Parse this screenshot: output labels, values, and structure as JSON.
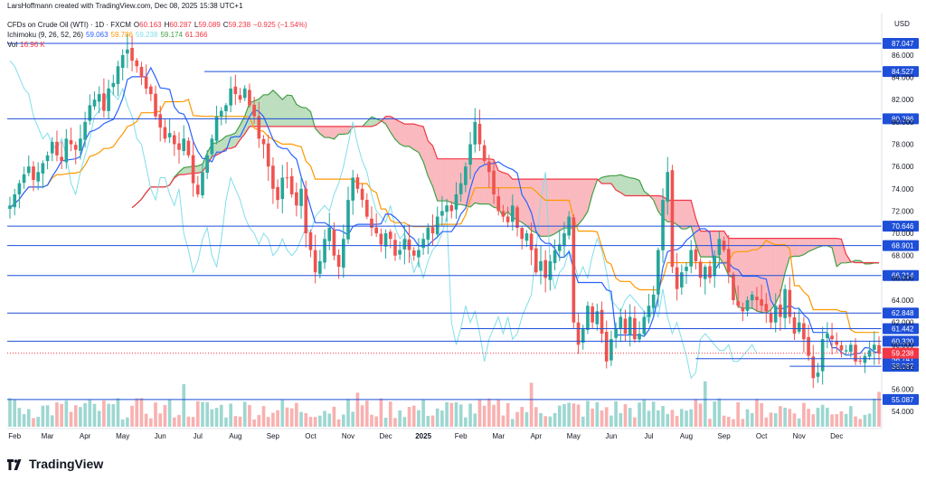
{
  "header": {
    "created_by": "LarsHoffmann created with TradingView.com, Dec 08, 2025 15:38 UTC+1",
    "currency": "USD"
  },
  "legend": {
    "symbol": "CFDs on Crude Oil (WTI) · 1D · FXCM",
    "ohlc": {
      "o_label": "O",
      "o": "60.163",
      "h_label": "H",
      "h": "60.287",
      "l_label": "L",
      "l": "59.089",
      "c_label": "C",
      "c": "59.238",
      "change": "−0.925 (−1.54%)"
    },
    "ichimoku": {
      "name": "Ichimoku (9, 26, 52, 26)",
      "v1": "59.063",
      "v2": "59.786",
      "v3": "59.238",
      "v4": "59.174",
      "v5": "61.366"
    },
    "vol": {
      "name": "Vol",
      "value": "16.96 K"
    }
  },
  "colors": {
    "up": "#26a69a",
    "down": "#ef5350",
    "conversion": "#2962ff",
    "base": "#ff9800",
    "lagging": "#80deea",
    "lead_a": "#43a047",
    "lead_b": "#f23645",
    "kumo_green": "rgba(67,160,71,0.35)",
    "kumo_red": "rgba(242,54,69,0.35)",
    "level": "#1e4fd8",
    "price_tag": "#f23645",
    "dashed": "#1e4fd8"
  },
  "chart_data": {
    "type": "candlestick",
    "title": "CFDs on Crude Oil (WTI) · 1D · FXCM",
    "ylim": [
      53,
      88
    ],
    "y_ticks": [
      "54.000",
      "56.000",
      "58.000",
      "60.000",
      "62.000",
      "64.000",
      "66.000",
      "68.000",
      "70.000",
      "72.000",
      "74.000",
      "76.000",
      "78.000",
      "80.000",
      "82.000",
      "84.000",
      "86.000"
    ],
    "x_ticks": [
      "Feb",
      "Mar",
      "Apr",
      "May",
      "Jun",
      "Jul",
      "Aug",
      "Sep",
      "Oct",
      "Nov",
      "Dec",
      "2025",
      "Feb",
      "Mar",
      "Apr",
      "May",
      "Jun",
      "Jul",
      "Aug",
      "Sep",
      "Oct",
      "Nov",
      "Dec"
    ],
    "horizontal_levels": [
      {
        "value": 87.047,
        "label": "87.047"
      },
      {
        "value": 84.527,
        "label": "84.527"
      },
      {
        "value": 80.286,
        "label": "80.286"
      },
      {
        "value": 70.646,
        "label": "70.646"
      },
      {
        "value": 68.901,
        "label": "68.901"
      },
      {
        "value": 66.214,
        "label": "66.214"
      },
      {
        "value": 62.848,
        "label": "62.848"
      },
      {
        "value": 61.442,
        "label": "61.442"
      },
      {
        "value": 60.32,
        "label": "60.320"
      },
      {
        "value": 58.741,
        "label": "58.741"
      },
      {
        "value": 58.062,
        "label": "58.062"
      },
      {
        "value": 55.087,
        "label": "55.087"
      }
    ],
    "last_price": {
      "value": 59.238,
      "label": "59.238"
    },
    "series_close": [
      {
        "month": "Jan",
        "values": [
          72.5,
          73.5,
          74.5,
          75.3,
          76.0,
          74.8,
          75.5
        ]
      },
      {
        "month": "Feb",
        "values": [
          76.3,
          77.0,
          78.2,
          77.0,
          76.5,
          78.5,
          78.0,
          77.5
        ]
      },
      {
        "month": "Mar",
        "values": [
          78.5,
          80.0,
          81.5,
          82.0,
          82.5,
          81.0,
          83.0,
          83.5
        ]
      },
      {
        "month": "Apr",
        "values": [
          85.0,
          86.0,
          86.5,
          85.5,
          85.0,
          84.0,
          83.0,
          82.5
        ]
      },
      {
        "month": "May",
        "values": [
          80.5,
          79.5,
          78.5,
          79.0,
          78.0,
          77.5,
          78.5,
          77.0
        ]
      },
      {
        "month": "Jun",
        "values": [
          74.5,
          73.5,
          75.5,
          77.0,
          78.5,
          80.5,
          81.0,
          81.5
        ]
      },
      {
        "month": "Jul",
        "values": [
          83.0,
          82.5,
          82.0,
          83.0,
          81.5,
          80.5,
          78.5,
          78.0
        ]
      },
      {
        "month": "Aug",
        "values": [
          76.0,
          74.0,
          73.0,
          75.0,
          75.0,
          73.5,
          72.5,
          74.0
        ]
      },
      {
        "month": "Sep",
        "values": [
          70.0,
          68.5,
          66.5,
          67.5,
          69.5,
          70.5,
          68.0,
          67.0
        ]
      },
      {
        "month": "Oct",
        "values": [
          69.5,
          73.0,
          75.0,
          74.0,
          73.0,
          71.5,
          70.5,
          70.0
        ]
      },
      {
        "month": "Nov",
        "values": [
          69.0,
          70.0,
          69.5,
          68.0,
          68.5,
          69.5,
          68.5,
          68.0
        ]
      },
      {
        "month": "Dec",
        "values": [
          68.5,
          69.5,
          70.5,
          70.0,
          71.5,
          72.0,
          72.5,
          72.0
        ]
      },
      {
        "month": "Jan",
        "values": [
          73.5,
          74.5,
          76.0,
          78.0,
          80.0,
          78.0,
          76.5,
          75.5
        ]
      },
      {
        "month": "Feb",
        "values": [
          73.5,
          72.0,
          71.5,
          71.0,
          72.5,
          70.5,
          69.5,
          70.0
        ]
      },
      {
        "month": "Mar",
        "values": [
          68.5,
          66.5,
          67.5,
          66.0,
          67.5,
          68.5,
          69.0,
          70.0
        ]
      },
      {
        "month": "Apr",
        "values": [
          71.5,
          62.0,
          60.0,
          61.5,
          63.5,
          62.0,
          63.0,
          61.0
        ]
      },
      {
        "month": "May",
        "values": [
          58.5,
          60.5,
          61.5,
          62.5,
          61.0,
          62.5,
          60.5,
          61.0
        ]
      },
      {
        "month": "Jun",
        "values": [
          62.5,
          63.5,
          64.5,
          68.5,
          73.0,
          75.5,
          67.0,
          65.0
        ]
      },
      {
        "month": "Jul",
        "values": [
          66.5,
          67.0,
          68.5,
          67.5,
          66.0,
          67.0,
          66.0,
          68.0
        ]
      },
      {
        "month": "Aug",
        "values": [
          69.5,
          68.5,
          66.5,
          64.0,
          63.5,
          63.0,
          64.0,
          64.5
        ]
      },
      {
        "month": "Sep",
        "values": [
          64.0,
          63.5,
          63.0,
          62.0,
          63.5,
          62.5,
          65.0,
          62.5
        ]
      },
      {
        "month": "Oct",
        "values": [
          61.0,
          62.0,
          60.5,
          59.0,
          57.0,
          57.5,
          60.5,
          61.0
        ]
      },
      {
        "month": "Nov",
        "values": [
          60.5,
          60.0,
          59.5,
          59.5,
          60.0,
          58.5,
          58.5,
          59.0
        ]
      },
      {
        "month": "Dec",
        "values": [
          59.5,
          60.0,
          59.2
        ]
      }
    ]
  },
  "branding": {
    "name": "TradingView"
  }
}
